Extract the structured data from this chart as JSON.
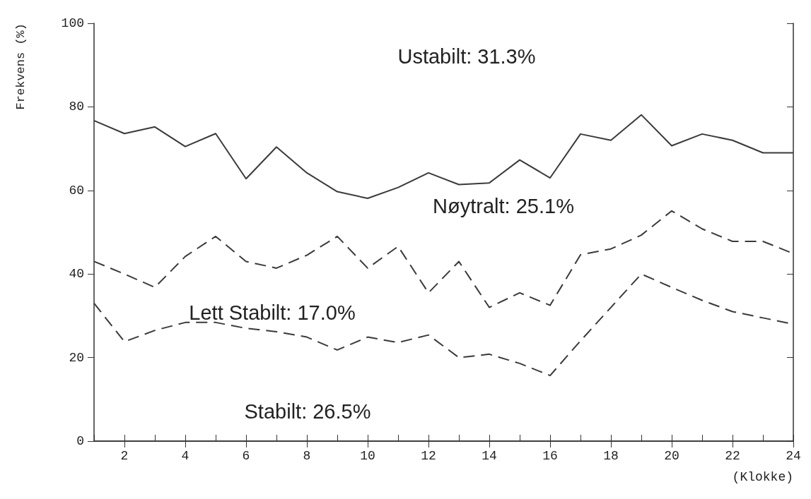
{
  "chart_data": {
    "type": "line",
    "ylabel": "Frekvens (%)",
    "xlabel": "(Klokke)",
    "x": [
      1,
      2,
      3,
      4,
      5,
      6,
      7,
      8,
      9,
      10,
      11,
      12,
      13,
      14,
      15,
      16,
      17,
      18,
      19,
      20,
      21,
      22,
      23,
      24
    ],
    "series": [
      {
        "color": "#3a3a3a",
        "line_style": "solid",
        "values": [
          76.7,
          73.6,
          75.2,
          70.5,
          73.6,
          62.8,
          70.4,
          64.2,
          59.7,
          58.1,
          60.7,
          64.2,
          61.4,
          61.8,
          67.3,
          63.0,
          73.5,
          72.0,
          78.1,
          70.7,
          73.5,
          72.0,
          69.0,
          69.0
        ]
      },
      {
        "color": "#3a3a3a",
        "line_style": "dashed",
        "values": [
          43.0,
          40.0,
          36.8,
          44.2,
          49.0,
          43.0,
          41.4,
          44.5,
          49.0,
          41.4,
          46.6,
          35.5,
          43.0,
          32.0,
          35.5,
          32.5,
          44.6,
          46.0,
          49.3,
          55.1,
          50.8,
          47.8,
          47.8,
          44.9
        ]
      },
      {
        "color": "#3a3a3a",
        "line_style": "dashed",
        "values": [
          33.0,
          23.8,
          26.5,
          28.4,
          28.4,
          27.0,
          26.2,
          24.9,
          21.8,
          24.9,
          23.6,
          25.4,
          20.0,
          20.8,
          18.6,
          15.7,
          24.0,
          32.0,
          40.0,
          36.8,
          33.7,
          31.0,
          29.5,
          28.0
        ]
      }
    ],
    "xlim": [
      1,
      24
    ],
    "xticks": [
      {
        "value": 1,
        "label": null
      },
      2,
      {
        "value": 3,
        "label": null
      },
      4,
      {
        "value": 5,
        "label": null
      },
      6,
      {
        "value": 7,
        "label": null
      },
      8,
      {
        "value": 9,
        "label": null
      },
      10,
      {
        "value": 11,
        "label": null
      },
      12,
      {
        "value": 13,
        "label": null
      },
      14,
      {
        "value": 15,
        "label": null
      },
      16,
      {
        "value": 17,
        "label": null
      },
      18,
      {
        "value": 19,
        "label": null
      },
      20,
      {
        "value": 21,
        "label": null
      },
      22,
      {
        "value": 23,
        "label": null
      },
      24
    ],
    "ylim": [
      0,
      100
    ],
    "yticks": [
      0,
      20,
      40,
      60,
      80,
      100
    ],
    "grid": false,
    "marker": "none",
    "annotations": [
      "Ustabilt: 31.3%",
      "Nøytralt: 25.1%",
      "Lett Stabilt: 17.0%",
      "Stabilt: 26.5%"
    ]
  }
}
